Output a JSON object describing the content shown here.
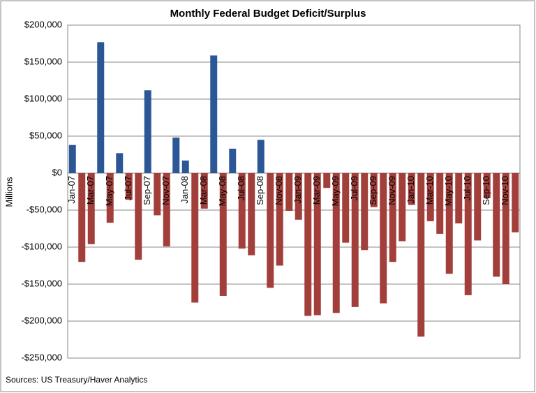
{
  "chart_data": {
    "type": "bar",
    "title": "Monthly Federal Budget Deficit/Surplus",
    "y_label": "Millions",
    "source": "Sources: US Treasury/Haver Analytics",
    "categories": [
      "Jan-07",
      null,
      "Mar-07",
      null,
      "May-07",
      null,
      "Jul-07",
      null,
      "Sep-07",
      null,
      "Nov-07",
      null,
      "Jan-08",
      null,
      "Mar-08",
      null,
      "May-08",
      null,
      "Jul-08",
      null,
      "Sep-08",
      null,
      "Nov-08",
      null,
      "Jan-09",
      null,
      "Mar-09",
      null,
      "May-09",
      null,
      "Jul-09",
      null,
      "Sep-09",
      null,
      "Nov-09",
      null,
      "Jan-10",
      null,
      "Mar-10",
      null,
      "May-10",
      null,
      "Jul-10",
      null,
      "Sep-10",
      null,
      "Nov-10",
      null
    ],
    "values": [
      38000,
      -120000,
      -96000,
      177000,
      -67000,
      27000,
      -36000,
      -117000,
      112000,
      -57000,
      -99000,
      48000,
      17000,
      -175000,
      -48000,
      159000,
      -166000,
      33000,
      -102000,
      -111000,
      45000,
      -155000,
      -125000,
      -51000,
      -63000,
      -193000,
      -192000,
      -20000,
      -189000,
      -94000,
      -181000,
      -104000,
      -46000,
      -176000,
      -120000,
      -92000,
      -43000,
      -221000,
      -65000,
      -82000,
      -136000,
      -68000,
      -165000,
      -91000,
      -34000,
      -140000,
      -150000,
      -80000
    ],
    "positive_color": "#2b5797",
    "negative_color": "#a23f3b",
    "ylim": [
      -250000,
      200000
    ],
    "yticks": [
      {
        "value": -250000,
        "label": "-$250,000"
      },
      {
        "value": -200000,
        "label": "-$200,000"
      },
      {
        "value": -150000,
        "label": "-$150,000"
      },
      {
        "value": -100000,
        "label": "-$100,000"
      },
      {
        "value": -50000,
        "label": "-$50,000"
      },
      {
        "value": 0,
        "label": "$0"
      },
      {
        "value": 50000,
        "label": "$50,000"
      },
      {
        "value": 100000,
        "label": "$100,000"
      },
      {
        "value": 150000,
        "label": "$150,000"
      },
      {
        "value": 200000,
        "label": "$200,000"
      }
    ],
    "grid": true
  }
}
